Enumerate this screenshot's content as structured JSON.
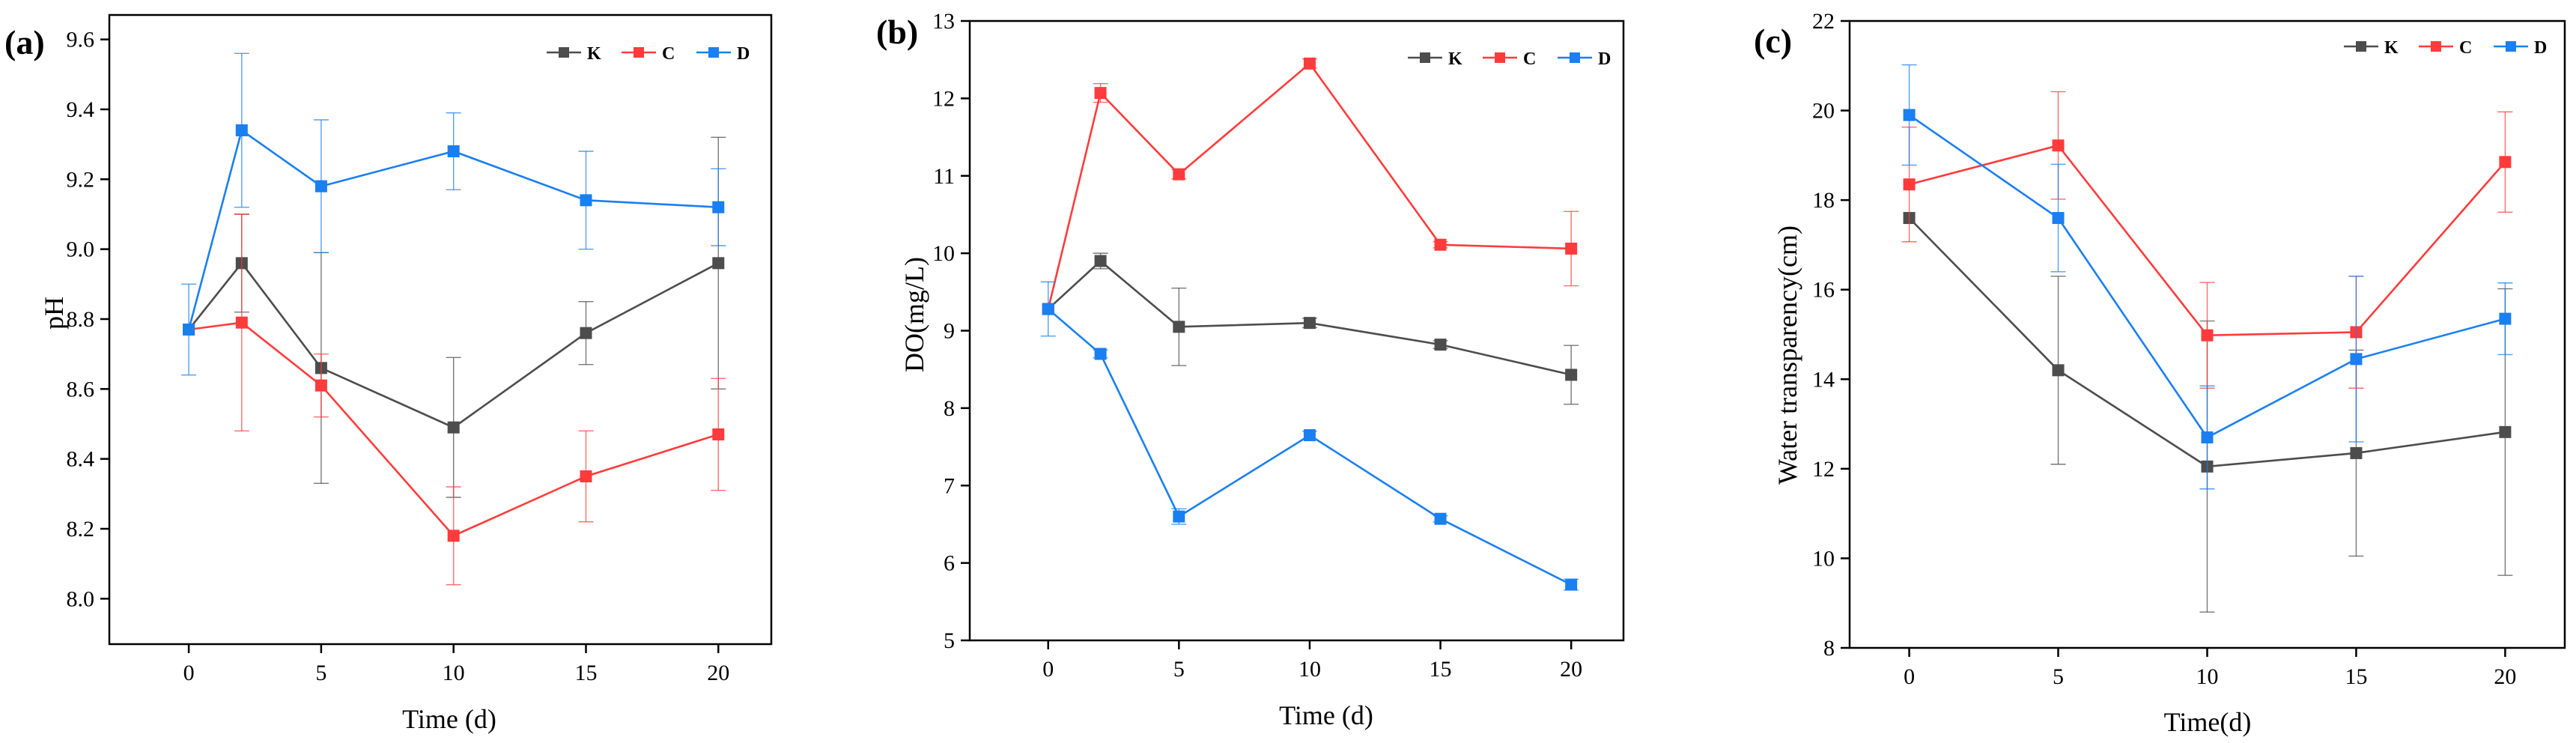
{
  "colors": {
    "K": "#4d4d4d",
    "C": "#ff3b3b",
    "D": "#1a7ff0"
  },
  "chart_data": [
    {
      "type": "line",
      "panel_label": "(a)",
      "xlabel": "Time (d)",
      "ylabel": "pH",
      "x_ticks": [
        0,
        5,
        10,
        15,
        20
      ],
      "y_ticks": [
        8.0,
        8.2,
        8.4,
        8.6,
        8.8,
        9.0,
        9.2,
        9.4,
        9.6
      ],
      "y_tick_labels": [
        "8.0",
        "8.2",
        "8.4",
        "8.6",
        "8.8",
        "9.0",
        "9.2",
        "9.4",
        "9.6"
      ],
      "xlim": [
        -3,
        22
      ],
      "ylim": [
        7.87,
        9.67
      ],
      "legend": [
        "K",
        "C",
        "D"
      ],
      "legend_position": "top-right",
      "x": [
        0,
        2,
        5,
        10,
        15,
        20
      ],
      "series": [
        {
          "name": "K",
          "values": [
            8.77,
            8.96,
            8.66,
            8.49,
            8.76,
            8.96
          ],
          "errors": [
            0.0,
            0.14,
            0.33,
            0.2,
            0.09,
            0.36
          ]
        },
        {
          "name": "C",
          "values": [
            8.77,
            8.79,
            8.61,
            8.18,
            8.35,
            8.47
          ],
          "errors": [
            0.0,
            0.31,
            0.09,
            0.14,
            0.13,
            0.16
          ]
        },
        {
          "name": "D",
          "values": [
            8.77,
            9.34,
            9.18,
            9.28,
            9.14,
            9.12
          ],
          "errors": [
            0.13,
            0.22,
            0.19,
            0.11,
            0.14,
            0.11
          ]
        }
      ]
    },
    {
      "type": "line",
      "panel_label": "(b)",
      "xlabel": "Time (d)",
      "ylabel": "DO(mg/L)",
      "x_ticks": [
        0,
        5,
        10,
        15,
        20
      ],
      "y_ticks": [
        5,
        6,
        7,
        8,
        9,
        10,
        11,
        12,
        13
      ],
      "y_tick_labels": [
        "5",
        "6",
        "7",
        "8",
        "9",
        "10",
        "11",
        "12",
        "13"
      ],
      "xlim": [
        -3,
        22
      ],
      "ylim": [
        5,
        13
      ],
      "legend": [
        "K",
        "C",
        "D"
      ],
      "legend_position": "top-right",
      "x": [
        0,
        2,
        5,
        10,
        15,
        20
      ],
      "series": [
        {
          "name": "K",
          "values": [
            9.28,
            9.9,
            9.05,
            9.1,
            8.82,
            8.43
          ],
          "errors": [
            0.0,
            0.1,
            0.5,
            0.06,
            0.05,
            0.38
          ]
        },
        {
          "name": "C",
          "values": [
            9.28,
            12.07,
            11.02,
            12.45,
            10.11,
            10.06
          ],
          "errors": [
            0.0,
            0.12,
            0.06,
            0.06,
            0.04,
            0.48
          ]
        },
        {
          "name": "D",
          "values": [
            9.28,
            8.7,
            6.6,
            7.65,
            6.57,
            5.72
          ],
          "errors": [
            0.35,
            0.05,
            0.1,
            0.05,
            0.04,
            0.07
          ]
        }
      ]
    },
    {
      "type": "line",
      "panel_label": "(c)",
      "xlabel": "Time(d)",
      "ylabel": "Water transparency(cm)",
      "x_ticks": [
        0,
        5,
        10,
        15,
        20
      ],
      "y_ticks": [
        8,
        10,
        12,
        14,
        16,
        18,
        20,
        22
      ],
      "y_tick_labels": [
        "8",
        "10",
        "12",
        "14",
        "16",
        "18",
        "20",
        "22"
      ],
      "xlim": [
        -2,
        22
      ],
      "ylim": [
        8,
        22
      ],
      "legend": [
        "K",
        "C",
        "D"
      ],
      "legend_position": "top-right",
      "x": [
        0,
        5,
        10,
        15,
        20
      ],
      "series": [
        {
          "name": "K",
          "values": [
            17.6,
            14.2,
            12.05,
            12.35,
            12.82
          ],
          "errors": [
            0.0,
            2.1,
            3.25,
            2.3,
            3.2
          ]
        },
        {
          "name": "C",
          "values": [
            18.35,
            19.22,
            14.98,
            15.05,
            18.85
          ],
          "errors": [
            1.28,
            1.2,
            1.18,
            1.25,
            1.12
          ]
        },
        {
          "name": "D",
          "values": [
            19.9,
            17.6,
            12.7,
            14.45,
            15.35
          ],
          "errors": [
            1.12,
            1.2,
            1.15,
            1.85,
            0.8
          ]
        }
      ]
    }
  ]
}
